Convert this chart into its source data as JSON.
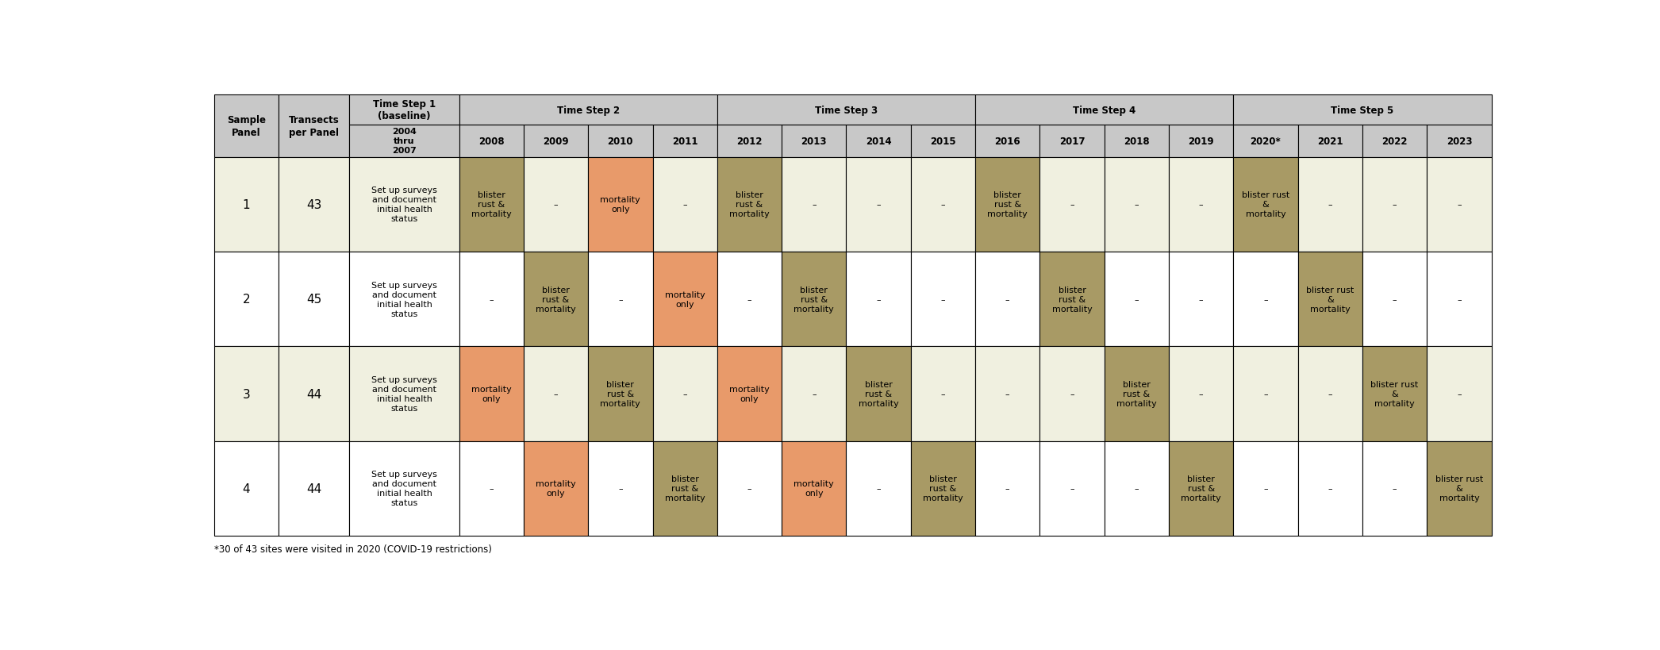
{
  "footnote": "*30 of 43 sites were visited in 2020 (COVID-19 restrictions)",
  "header_bg": "#c8c8c8",
  "row_bg_1": "#f0f0e0",
  "row_bg_2": "#ffffff",
  "row_bg_3": "#f0f0e0",
  "row_bg_4": "#ffffff",
  "color_blister": "#a89a65",
  "color_mortality": "#e89a6a",
  "year_headers": [
    "2004\nthru\n2007",
    "2008",
    "2009",
    "2010",
    "2011",
    "2012",
    "2013",
    "2014",
    "2015",
    "2016",
    "2017",
    "2018",
    "2019",
    "2020*",
    "2021",
    "2022",
    "2023"
  ],
  "baseline_text": "Set up surveys\nand document\ninitial health\nstatus",
  "panels": [
    "1",
    "2",
    "3",
    "4"
  ],
  "transects": [
    "43",
    "45",
    "44",
    "44"
  ],
  "cell_data": [
    [
      {
        "text": "blister\nrust &\nmortality",
        "type": "blister"
      },
      {
        "text": "–",
        "type": "empty"
      },
      {
        "text": "mortality\nonly",
        "type": "mortality"
      },
      {
        "text": "–",
        "type": "empty"
      },
      {
        "text": "blister\nrust &\nmortality",
        "type": "blister"
      },
      {
        "text": "–",
        "type": "empty"
      },
      {
        "text": "–",
        "type": "empty"
      },
      {
        "text": "–",
        "type": "empty"
      },
      {
        "text": "blister\nrust &\nmortality",
        "type": "blister"
      },
      {
        "text": "–",
        "type": "empty"
      },
      {
        "text": "–",
        "type": "empty"
      },
      {
        "text": "–",
        "type": "empty"
      },
      {
        "text": "blister rust\n&\nmortality",
        "type": "blister"
      },
      {
        "text": "–",
        "type": "empty"
      },
      {
        "text": "–",
        "type": "empty"
      },
      {
        "text": "–",
        "type": "empty"
      }
    ],
    [
      {
        "text": "–",
        "type": "empty"
      },
      {
        "text": "blister\nrust &\nmortality",
        "type": "blister"
      },
      {
        "text": "–",
        "type": "empty"
      },
      {
        "text": "mortality\nonly",
        "type": "mortality"
      },
      {
        "text": "–",
        "type": "empty"
      },
      {
        "text": "blister\nrust &\nmortality",
        "type": "blister"
      },
      {
        "text": "–",
        "type": "empty"
      },
      {
        "text": "–",
        "type": "empty"
      },
      {
        "text": "–",
        "type": "empty"
      },
      {
        "text": "blister\nrust &\nmortality",
        "type": "blister"
      },
      {
        "text": "–",
        "type": "empty"
      },
      {
        "text": "–",
        "type": "empty"
      },
      {
        "text": "–",
        "type": "empty"
      },
      {
        "text": "blister rust\n&\nmortality",
        "type": "blister"
      },
      {
        "text": "–",
        "type": "empty"
      },
      {
        "text": "–",
        "type": "empty"
      }
    ],
    [
      {
        "text": "mortality\nonly",
        "type": "mortality"
      },
      {
        "text": "–",
        "type": "empty"
      },
      {
        "text": "blister\nrust &\nmortality",
        "type": "blister"
      },
      {
        "text": "–",
        "type": "empty"
      },
      {
        "text": "mortality\nonly",
        "type": "mortality"
      },
      {
        "text": "–",
        "type": "empty"
      },
      {
        "text": "blister\nrust &\nmortality",
        "type": "blister"
      },
      {
        "text": "–",
        "type": "empty"
      },
      {
        "text": "–",
        "type": "empty"
      },
      {
        "text": "–",
        "type": "empty"
      },
      {
        "text": "blister\nrust &\nmortality",
        "type": "blister"
      },
      {
        "text": "–",
        "type": "empty"
      },
      {
        "text": "–",
        "type": "empty"
      },
      {
        "text": "–",
        "type": "empty"
      },
      {
        "text": "blister rust\n&\nmortality",
        "type": "blister"
      },
      {
        "text": "–",
        "type": "empty"
      }
    ],
    [
      {
        "text": "–",
        "type": "empty"
      },
      {
        "text": "mortality\nonly",
        "type": "mortality"
      },
      {
        "text": "–",
        "type": "empty"
      },
      {
        "text": "blister\nrust &\nmortality",
        "type": "blister"
      },
      {
        "text": "–",
        "type": "empty"
      },
      {
        "text": "mortality\nonly",
        "type": "mortality"
      },
      {
        "text": "–",
        "type": "empty"
      },
      {
        "text": "blister\nrust &\nmortality",
        "type": "blister"
      },
      {
        "text": "–",
        "type": "empty"
      },
      {
        "text": "–",
        "type": "empty"
      },
      {
        "text": "–",
        "type": "empty"
      },
      {
        "text": "blister\nrust &\nmortality",
        "type": "blister"
      },
      {
        "text": "–",
        "type": "empty"
      },
      {
        "text": "–",
        "type": "empty"
      },
      {
        "text": "–",
        "type": "empty"
      },
      {
        "text": "blister rust\n&\nmortality",
        "type": "blister"
      }
    ]
  ]
}
